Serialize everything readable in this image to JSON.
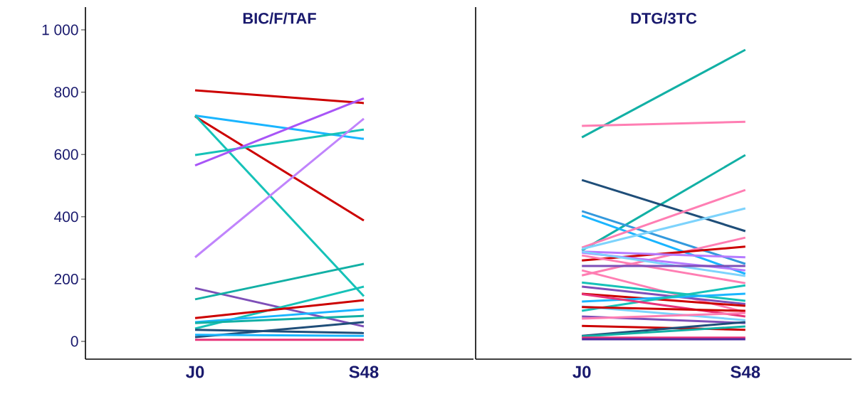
{
  "chart_data": [
    {
      "type": "line",
      "title": "BIC/F/TAF",
      "categories": [
        "J0",
        "S48"
      ],
      "ylim": [
        -57,
        1073
      ],
      "yticks": [
        0,
        200,
        400,
        600,
        800,
        {
          "value": 1000,
          "label": "1 000"
        }
      ],
      "grid": false,
      "marker": "none",
      "line_style": "solid",
      "series": [
        {
          "color": "#cc0000",
          "values": [
            806,
            765
          ]
        },
        {
          "color": "#1ab5ff",
          "values": [
            725,
            650
          ]
        },
        {
          "color": "#cc0000",
          "values": [
            722,
            388
          ]
        },
        {
          "color": "#16c2b8",
          "values": [
            725,
            145
          ]
        },
        {
          "color": "#16c2b8",
          "values": [
            598,
            680
          ]
        },
        {
          "color": "#a855f7",
          "values": [
            565,
            780
          ]
        },
        {
          "color": "#c084fc",
          "values": [
            270,
            715
          ]
        },
        {
          "color": "#7e4fb8",
          "values": [
            171,
            48
          ]
        },
        {
          "color": "#12b0a5",
          "values": [
            135,
            249
          ]
        },
        {
          "color": "#16c2b8",
          "values": [
            41,
            176
          ]
        },
        {
          "color": "#cc0000",
          "values": [
            75,
            132
          ]
        },
        {
          "color": "#1ab5ff",
          "values": [
            62,
            103
          ]
        },
        {
          "color": "#12b0a5",
          "values": [
            59,
            82
          ]
        },
        {
          "color": "#1f4e79",
          "values": [
            37,
            27
          ]
        },
        {
          "color": "#1f4e79",
          "values": [
            14,
            62
          ]
        },
        {
          "color": "#1ab5ff",
          "values": [
            21,
            18
          ]
        },
        {
          "color": "#e8337a",
          "values": [
            5,
            5
          ]
        }
      ]
    },
    {
      "type": "line",
      "title": "DTG/3TC",
      "categories": [
        "J0",
        "S48"
      ],
      "ylim": [
        -57,
        1073
      ],
      "yticks": [
        0,
        200,
        400,
        600,
        800,
        1000
      ],
      "tick_labels": "x",
      "grid": false,
      "marker": "none",
      "line_style": "solid",
      "series": [
        {
          "color": "#12b0a5",
          "values": [
            655,
            936
          ]
        },
        {
          "color": "#ff7eb3",
          "values": [
            692,
            705
          ]
        },
        {
          "color": "#12b0a5",
          "values": [
            292,
            598
          ]
        },
        {
          "color": "#1f4e79",
          "values": [
            518,
            354
          ]
        },
        {
          "color": "#3399dd",
          "values": [
            418,
            249
          ]
        },
        {
          "color": "#1ab5ff",
          "values": [
            404,
            217
          ]
        },
        {
          "color": "#ff7eb3",
          "values": [
            301,
            486
          ]
        },
        {
          "color": "#7dd3fc",
          "values": [
            297,
            427
          ]
        },
        {
          "color": "#ff7eb3",
          "values": [
            212,
            333
          ]
        },
        {
          "color": "#cc0000",
          "values": [
            260,
            304
          ]
        },
        {
          "color": "#b57bff",
          "values": [
            288,
            270
          ]
        },
        {
          "color": "#b57bff",
          "values": [
            285,
            228
          ]
        },
        {
          "color": "#7dd3fc",
          "values": [
            288,
            210
          ]
        },
        {
          "color": "#ff7eb3",
          "values": [
            276,
            187
          ]
        },
        {
          "color": "#7e4fb8",
          "values": [
            242,
            242
          ]
        },
        {
          "color": "#ff7eb3",
          "values": [
            228,
            94
          ]
        },
        {
          "color": "#16c2b8",
          "values": [
            189,
            130
          ]
        },
        {
          "color": "#7e4fb8",
          "values": [
            176,
            120
          ]
        },
        {
          "color": "#cc0000",
          "values": [
            153,
            114
          ]
        },
        {
          "color": "#1ab5ff",
          "values": [
            128,
            153
          ]
        },
        {
          "color": "#16c2b8",
          "values": [
            98,
            180
          ]
        },
        {
          "color": "#e8337a",
          "values": [
            152,
            80
          ]
        },
        {
          "color": "#7dd3fc",
          "values": [
            112,
            68
          ]
        },
        {
          "color": "#cc0000",
          "values": [
            110,
            98
          ]
        },
        {
          "color": "#7e4fb8",
          "values": [
            80,
            59
          ]
        },
        {
          "color": "#ff7eb3",
          "values": [
            73,
            91
          ]
        },
        {
          "color": "#cc0000",
          "values": [
            50,
            37
          ]
        },
        {
          "color": "#1f4e79",
          "values": [
            18,
            62
          ]
        },
        {
          "color": "#12b0a5",
          "values": [
            16,
            48
          ]
        },
        {
          "color": "#e8337a",
          "values": [
            12,
            12
          ]
        },
        {
          "color": "#4b2aa0",
          "values": [
            7,
            7
          ]
        }
      ]
    }
  ]
}
